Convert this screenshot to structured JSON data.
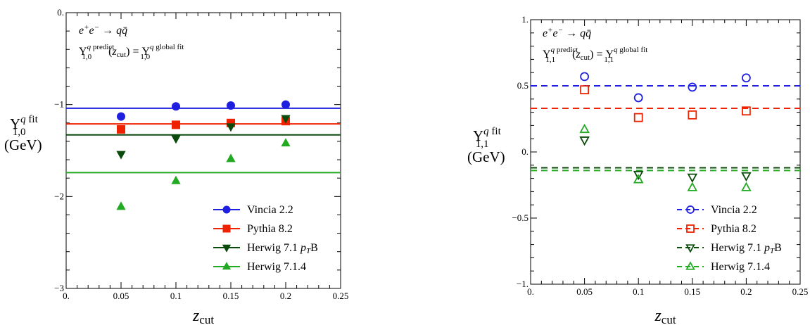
{
  "chart_data": [
    {
      "type": "scatter",
      "process": "e⁺e⁻ → q q̄",
      "relation": "Υ₁,₀^{q predict}(z_cut) = Υ₁,₀^{q global fit}",
      "ylabel_main": "Υ",
      "ylabel_sup": "q fit",
      "ylabel_sub": "1,0",
      "ylabel_unit": "(GeV)",
      "xlabel": "z",
      "xlabel_sub": "cut",
      "xlim": [
        0,
        0.25
      ],
      "ylim": [
        -3,
        0
      ],
      "xticks": [
        "0.",
        "0.05",
        "0.1",
        "0.15",
        "0.2",
        "0.25"
      ],
      "yticks": [
        {
          "value": 0,
          "label": "0."
        },
        {
          "value": -1,
          "label": "−1"
        },
        {
          "value": -2,
          "label": "−2"
        },
        {
          "value": -3,
          "label": "−3"
        }
      ],
      "legend_position": "bottom-right",
      "series": [
        {
          "name": "Vincia 2.2",
          "color": "#1f1fe0",
          "marker": "circle",
          "filled": true,
          "fit_line": -1.04,
          "line_style": "solid",
          "x": [
            0.05,
            0.1,
            0.15,
            0.2
          ],
          "y": [
            -1.13,
            -1.02,
            -1.01,
            -1.0
          ]
        },
        {
          "name": "Pythia 8.2",
          "color": "#ee2200",
          "marker": "square",
          "filled": true,
          "fit_line": -1.21,
          "line_style": "solid",
          "x": [
            0.05,
            0.1,
            0.15,
            0.2
          ],
          "y": [
            -1.27,
            -1.22,
            -1.2,
            -1.18
          ]
        },
        {
          "name": "Herwig 7.1 p_T B",
          "legend_main": "Herwig 7.1 ",
          "legend_italic": "p",
          "legend_sub": "T",
          "legend_tail": "B",
          "color": "#0a4a0a",
          "marker": "triangle-down",
          "filled": true,
          "fit_line": -1.33,
          "line_style": "solid",
          "x": [
            0.05,
            0.1,
            0.15,
            0.2
          ],
          "y": [
            -1.54,
            -1.37,
            -1.24,
            -1.15
          ]
        },
        {
          "name": "Herwig 7.1.4",
          "color": "#22aa22",
          "marker": "triangle-up",
          "filled": true,
          "fit_line": -1.74,
          "line_style": "solid",
          "x": [
            0.05,
            0.1,
            0.15,
            0.2
          ],
          "y": [
            -2.11,
            -1.83,
            -1.59,
            -1.42
          ]
        }
      ]
    },
    {
      "type": "scatter",
      "process": "e⁺e⁻ → q q̄",
      "relation": "Υ₁,₁^{q predict}(z_cut) = Υ₁,₁^{q global fit}",
      "ylabel_main": "Υ",
      "ylabel_sup": "q fit",
      "ylabel_sub": "1,1",
      "ylabel_unit": "(GeV)",
      "xlabel": "z",
      "xlabel_sub": "cut",
      "xlim": [
        0,
        0.25
      ],
      "ylim": [
        -1,
        1
      ],
      "xticks": [
        "0.",
        "0.05",
        "0.1",
        "0.15",
        "0.2",
        "0.25"
      ],
      "yticks": [
        {
          "value": 1,
          "label": "1."
        },
        {
          "value": 0.5,
          "label": "0.5"
        },
        {
          "value": 0,
          "label": "0."
        },
        {
          "value": -0.5,
          "label": "−0.5"
        },
        {
          "value": -1,
          "label": "−1."
        }
      ],
      "legend_position": "bottom-right",
      "series": [
        {
          "name": "Vincia 2.2",
          "color": "#1f1fe0",
          "marker": "circle",
          "filled": false,
          "fit_line": 0.5,
          "line_style": "dashed",
          "x": [
            0.05,
            0.1,
            0.15,
            0.2
          ],
          "y": [
            0.57,
            0.41,
            0.49,
            0.56
          ]
        },
        {
          "name": "Pythia 8.2",
          "color": "#ee2200",
          "marker": "square",
          "filled": false,
          "fit_line": 0.33,
          "line_style": "dashed",
          "x": [
            0.05,
            0.1,
            0.15,
            0.2
          ],
          "y": [
            0.47,
            0.26,
            0.28,
            0.31
          ]
        },
        {
          "name": "Herwig 7.1 p_T B",
          "legend_main": "Herwig 7.1 ",
          "legend_italic": "p",
          "legend_sub": "T",
          "legend_tail": "B",
          "color": "#0a4a0a",
          "marker": "triangle-down",
          "filled": false,
          "fit_line": -0.12,
          "line_style": "dashed",
          "x": [
            0.05,
            0.1,
            0.15,
            0.2
          ],
          "y": [
            0.09,
            -0.17,
            -0.19,
            -0.18
          ]
        },
        {
          "name": "Herwig 7.1.4",
          "color": "#22aa22",
          "marker": "triangle-up",
          "filled": false,
          "fit_line": -0.14,
          "line_style": "dashed",
          "x": [
            0.05,
            0.1,
            0.15,
            0.2
          ],
          "y": [
            0.17,
            -0.21,
            -0.27,
            -0.27
          ]
        }
      ]
    }
  ]
}
